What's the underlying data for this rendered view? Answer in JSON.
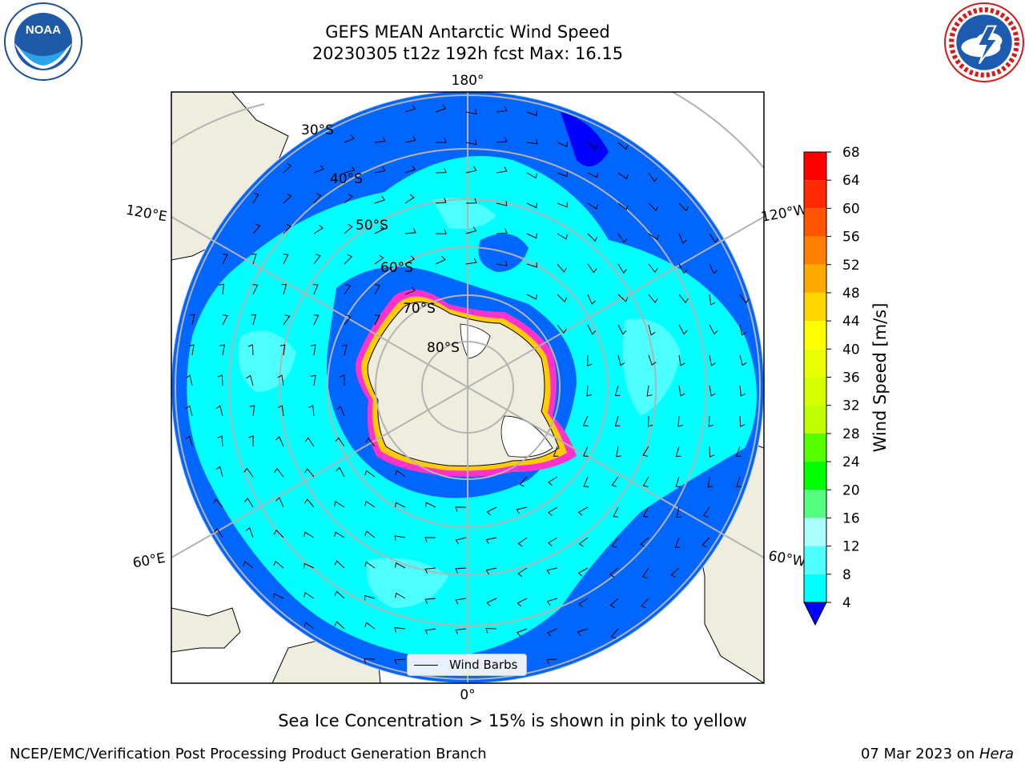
{
  "header": {
    "title_line1": "GEFS MEAN Antarctic Wind Speed",
    "title_line2": "20230305 t12z 192h fcst   Max: 16.15"
  },
  "logos": {
    "left": "noaa-logo",
    "left_text": "NOAA",
    "left_ring_text": "NATIONAL OCEANIC AND ATMOSPHERIC ADMINISTRATION · U.S. DEPARTMENT OF COMMERCE",
    "right": "nws-logo",
    "right_ring_text": "NATIONAL WEATHER SERVICE"
  },
  "map": {
    "projection": "south-polar-stereographic",
    "longitude_labels": [
      "180°",
      "120°E",
      "120°W",
      "60°E",
      "60°W",
      "0°"
    ],
    "latitude_labels": [
      "30°S",
      "40°S",
      "50°S",
      "60°S",
      "70°S",
      "80°S"
    ],
    "legend_label": "Wind Barbs",
    "colors": {
      "ocean_low": "#0066ff",
      "ocean_mid": "#00ffff",
      "ocean_high": "#4dffff",
      "land": "#efedde",
      "ice_edge": "#ff33cc",
      "grid": "#b3b3b3"
    }
  },
  "colorbar": {
    "label": "Wind Speed [m/s]",
    "ticks": [
      "68",
      "64",
      "60",
      "56",
      "52",
      "48",
      "44",
      "40",
      "36",
      "32",
      "28",
      "24",
      "20",
      "16",
      "12",
      "8",
      "4"
    ],
    "colors_top_to_bottom": [
      "#ff0000",
      "#ff2a00",
      "#ff5500",
      "#ff8000",
      "#ffaa00",
      "#ffd500",
      "#ffff00",
      "#eaff00",
      "#d5ff00",
      "#bfff00",
      "#55ff00",
      "#00ff00",
      "#55ff80",
      "#aaffff",
      "#4dffff",
      "#00ffff",
      "#0066ff"
    ],
    "extend_color": "#0000ff"
  },
  "footer": {
    "note": "Sea Ice Concentration > 15% is shown in pink to yellow",
    "credit": "NCEP/EMC/Verification Post Processing Product Generation Branch",
    "date": "07 Mar 2023 on ",
    "machine": "Hera"
  }
}
